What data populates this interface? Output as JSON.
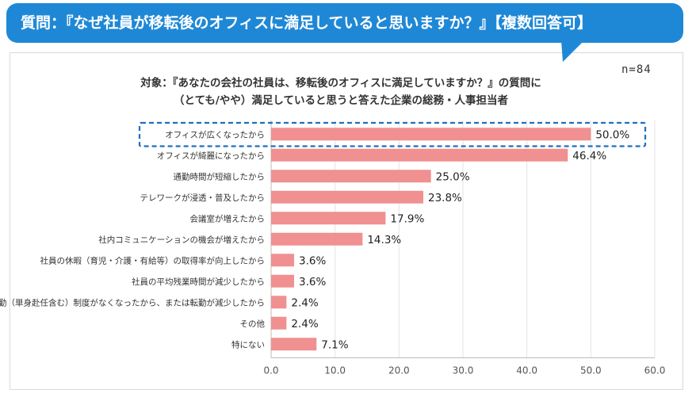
{
  "banner": {
    "question": "質問：『なぜ社員が移転後のオフィスに満足していると思いますか？』【複数回答可】",
    "color": "#1f88d6"
  },
  "n_label": "n=84",
  "chart_data": {
    "type": "bar",
    "orientation": "horizontal",
    "title_lines": [
      "対象：『あなたの会社の社員は、移転後のオフィスに満足していますか？』の質問に",
      "（とても/やや）満足していると思うと答えた企業の総務・人事担当者"
    ],
    "categories": [
      "オフィスが広くなったから",
      "オフィスが綺麗になったから",
      "通勤時間が短縮したから",
      "テレワークが浸透・普及したから",
      "会議室が増えたから",
      "社内コミュニケーションの機会が増えたから",
      "社員の休暇（育児・介護・有給等）の取得率が向上したから",
      "社員の平均残業時間が減少したから",
      "転勤（単身赴任含む）制度がなくなったから、または転勤が減少したから",
      "その他",
      "特にない"
    ],
    "values": [
      50.0,
      46.4,
      25.0,
      23.8,
      17.9,
      14.3,
      3.6,
      3.6,
      2.4,
      2.4,
      7.1
    ],
    "value_labels": [
      "50.0%",
      "46.4%",
      "25.0%",
      "23.8%",
      "17.9%",
      "14.3%",
      "3.6%",
      "3.6%",
      "2.4%",
      "2.4%",
      "7.1%"
    ],
    "xlim": [
      0,
      60
    ],
    "xticks": [
      "0.0",
      "10.0",
      "20.0",
      "30.0",
      "40.0",
      "50.0",
      "60.0"
    ],
    "highlight_index": 0,
    "bar_color": "#f09090",
    "highlight_color": "#1f6fc0"
  }
}
